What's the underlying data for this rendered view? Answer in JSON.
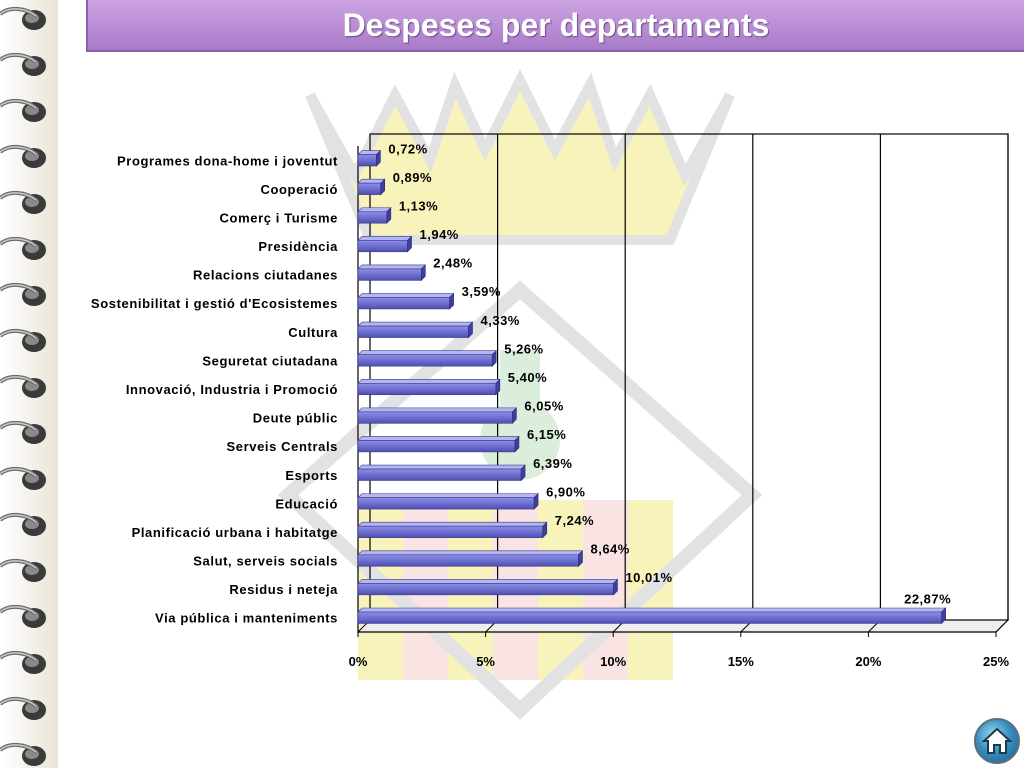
{
  "slide": {
    "title": "Despeses per departaments"
  },
  "icons": {
    "home": "home-icon",
    "rings": "binder-ring-icon",
    "watermark": "crest-watermark"
  },
  "colors": {
    "title_bar": "#b58bd3",
    "bar_front": "#6f6fd0",
    "bar_top": "#aeb1ef",
    "bar_end": "#4a4aa8",
    "watermark_yellow": "#f6f0a4",
    "watermark_gray": "#d6d6d6"
  },
  "chart_data": {
    "type": "bar",
    "orientation": "horizontal",
    "categories": [
      "Programes dona-home i joventut",
      "Cooperació",
      "Comerç i Turisme",
      "Presidència",
      "Relacions ciutadanes",
      "Sostenibilitat i gestió d'Ecosistemes",
      "Cultura",
      "Seguretat ciutadana",
      "Innovació, Industria i Promoció",
      "Deute públic",
      "Serveis Centrals",
      "Esports",
      "Educació",
      "Planificació urbana i habitatge",
      "Salut, serveis socials",
      "Residus i neteja",
      "Via pública i manteniments"
    ],
    "values": [
      0.72,
      0.89,
      1.13,
      1.94,
      2.48,
      3.59,
      4.33,
      5.26,
      5.4,
      6.05,
      6.15,
      6.39,
      6.9,
      7.24,
      8.64,
      10.01,
      22.87
    ],
    "data_labels": [
      "0,72%",
      "0,89%",
      "1,13%",
      "1,94%",
      "2,48%",
      "3,59%",
      "4,33%",
      "5,26%",
      "5,40%",
      "6,05%",
      "6,15%",
      "6,39%",
      "6,90%",
      "7,24%",
      "8,64%",
      "10,01%",
      "22,87%"
    ],
    "xlim": [
      0,
      25
    ],
    "xticks": [
      0,
      5,
      10,
      15,
      20,
      25
    ],
    "xtick_labels": [
      "0%",
      "5%",
      "10%",
      "15%",
      "20%",
      "25%"
    ],
    "grid": true,
    "grid_axis": "x",
    "style": "3d",
    "legend": "none"
  }
}
